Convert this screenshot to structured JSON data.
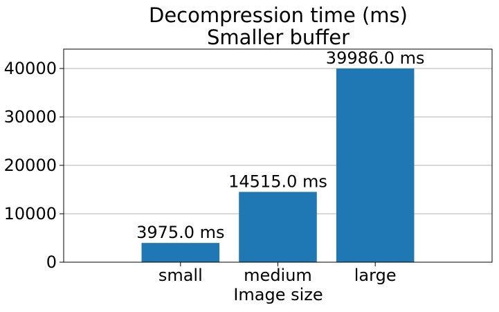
{
  "chart_data": {
    "type": "bar",
    "title_lines": [
      "Decompression time (ms)",
      "Smaller buffer"
    ],
    "xlabel": "Image size",
    "ylabel": "",
    "categories": [
      "small",
      "medium",
      "large"
    ],
    "values": [
      3975.0,
      14515.0,
      39986.0
    ],
    "value_labels": [
      "3975.0 ms",
      "14515.0 ms",
      "39986.0 ms"
    ],
    "ylim": [
      0,
      44000
    ],
    "yticks": [
      0,
      10000,
      20000,
      30000,
      40000
    ],
    "ytick_labels": [
      "0",
      "10000",
      "20000",
      "30000",
      "40000"
    ],
    "grid": "horizontal",
    "bar_color": "#1f77b4",
    "grid_color": "#b0b0b0"
  }
}
